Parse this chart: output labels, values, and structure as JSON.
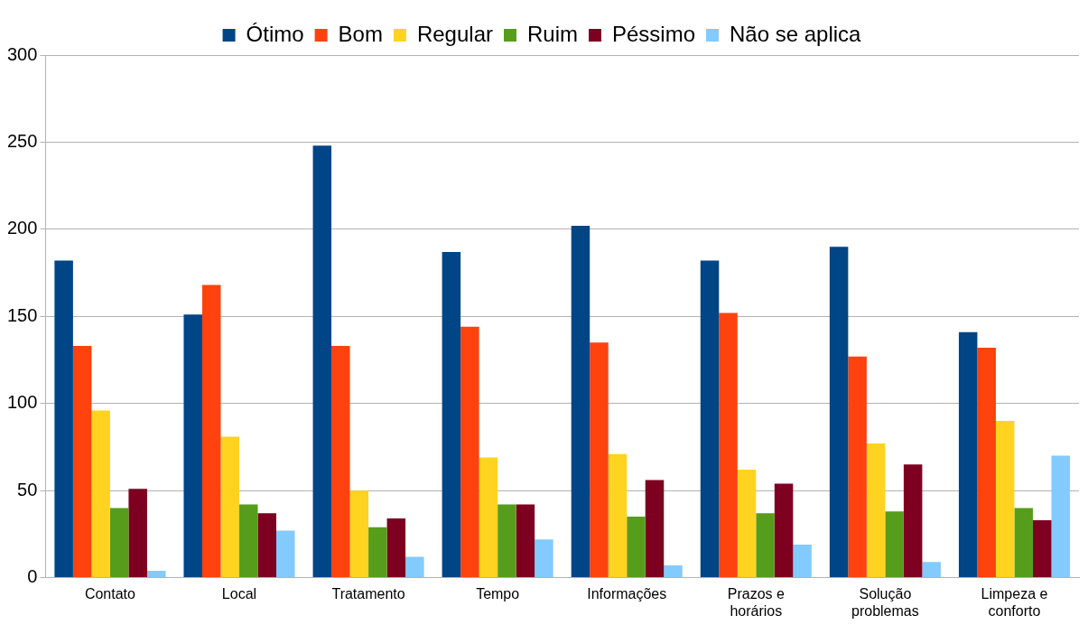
{
  "chart_data": {
    "type": "bar",
    "categories": [
      "Contato",
      "Local",
      "Tratamento",
      "Tempo",
      "Informações",
      "Prazos e horários",
      "Solução problemas",
      "Limpeza e conforto"
    ],
    "series": [
      {
        "name": "Ótimo",
        "color": "#004586",
        "values": [
          182,
          151,
          248,
          187,
          202,
          182,
          190,
          141
        ]
      },
      {
        "name": "Bom",
        "color": "#ff420e",
        "values": [
          133,
          168,
          133,
          144,
          135,
          152,
          127,
          132
        ]
      },
      {
        "name": "Regular",
        "color": "#ffd320",
        "values": [
          96,
          81,
          50,
          69,
          71,
          62,
          77,
          90
        ]
      },
      {
        "name": "Ruim",
        "color": "#579d1c",
        "values": [
          40,
          42,
          29,
          42,
          35,
          37,
          38,
          40
        ]
      },
      {
        "name": "Péssimo",
        "color": "#7e0021",
        "values": [
          51,
          37,
          34,
          42,
          56,
          54,
          65,
          33
        ]
      },
      {
        "name": "Não se aplica",
        "color": "#83caff",
        "values": [
          4,
          27,
          12,
          22,
          7,
          19,
          9,
          70
        ]
      }
    ],
    "ylim": [
      0,
      300
    ],
    "yticks": [
      0,
      50,
      100,
      150,
      200,
      250,
      300
    ],
    "grid": "y",
    "legend": "top"
  }
}
